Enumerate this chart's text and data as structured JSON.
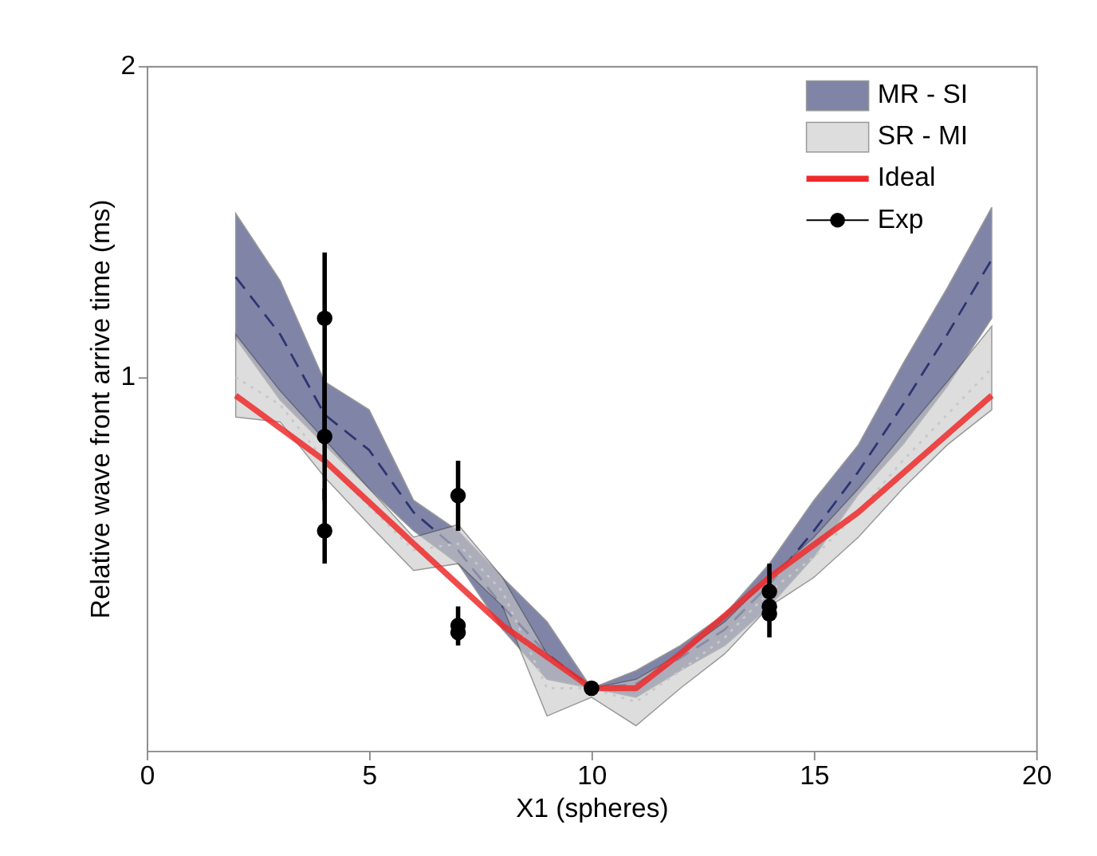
{
  "chart_data": {
    "type": "line",
    "xlabel": "X1 (spheres)",
    "ylabel": "Relative wave front arrive time (ms)",
    "xlim": [
      0,
      20
    ],
    "xticks": [
      0,
      5,
      10,
      15,
      20
    ],
    "ylim": [
      0.435,
      2
    ],
    "yticks": [
      1,
      2
    ],
    "log": "y",
    "grid": false,
    "legend": "top right",
    "series": [
      {
        "name": "MR - SI",
        "line_style": "dashed",
        "color": "#2c3570",
        "x": [
          2,
          3,
          4,
          5,
          6,
          7,
          8,
          9,
          10,
          11,
          12,
          13,
          14,
          15,
          16,
          17,
          18,
          19
        ],
        "values": [
          1.25,
          1.1,
          0.92,
          0.85,
          0.74,
          0.68,
          0.6,
          0.54,
          0.5,
          0.505,
          0.535,
          0.57,
          0.63,
          0.71,
          0.81,
          0.94,
          1.1,
          1.3
        ],
        "lower": [
          1.09,
          0.95,
          0.86,
          0.78,
          0.71,
          0.66,
          0.57,
          0.51,
          0.5,
          0.49,
          0.52,
          0.55,
          0.6,
          0.67,
          0.77,
          0.86,
          0.98,
          1.14
        ],
        "upper": [
          1.44,
          1.24,
          0.99,
          0.93,
          0.76,
          0.71,
          0.64,
          0.58,
          0.5,
          0.52,
          0.55,
          0.59,
          0.66,
          0.76,
          0.86,
          1.03,
          1.22,
          1.46
        ]
      },
      {
        "name": "SR - MI",
        "line_style": "dotted",
        "color": "#c8c8c8",
        "x": [
          2,
          3,
          4,
          5,
          6,
          7,
          8,
          9,
          10,
          11,
          12,
          13,
          14,
          15,
          16,
          17,
          18,
          19
        ],
        "values": [
          1.0,
          0.94,
          0.83,
          0.75,
          0.68,
          0.69,
          0.62,
          0.5,
          0.5,
          0.485,
          0.52,
          0.56,
          0.62,
          0.67,
          0.74,
          0.83,
          0.92,
          1.02
        ],
        "lower": [
          0.915,
          0.905,
          0.8,
          0.72,
          0.65,
          0.66,
          0.6,
          0.47,
          0.49,
          0.46,
          0.5,
          0.54,
          0.6,
          0.64,
          0.7,
          0.78,
          0.86,
          0.93
        ],
        "upper": [
          1.1,
          0.97,
          0.87,
          0.78,
          0.7,
          0.72,
          0.64,
          0.54,
          0.5,
          0.51,
          0.54,
          0.58,
          0.64,
          0.7,
          0.78,
          0.88,
          0.99,
          1.12
        ]
      },
      {
        "name": "Ideal",
        "line_style": "solid",
        "color": "#ee2b2b",
        "x": [
          2,
          4,
          6,
          8,
          10,
          11,
          12,
          14,
          16,
          19
        ],
        "values": [
          0.96,
          0.83,
          0.69,
          0.575,
          0.5,
          0.5,
          0.54,
          0.64,
          0.74,
          0.96
        ]
      },
      {
        "name": "Exp",
        "type": "scatter",
        "marker": "circle",
        "color": "#000000",
        "x": [
          4,
          4,
          4,
          7,
          7,
          7,
          10,
          14,
          14,
          14
        ],
        "values": [
          1.14,
          0.876,
          0.71,
          0.768,
          0.575,
          0.566,
          0.5,
          0.62,
          0.6,
          0.59
        ],
        "errors": [
          [
            0.88,
            1.32
          ],
          [
            0.76,
            1.0
          ],
          [
            0.66,
            0.78
          ],
          [
            0.71,
            0.83
          ],
          [
            0.55,
            0.6
          ],
          null,
          null,
          [
            0.56,
            0.66
          ],
          null,
          null
        ]
      }
    ]
  }
}
